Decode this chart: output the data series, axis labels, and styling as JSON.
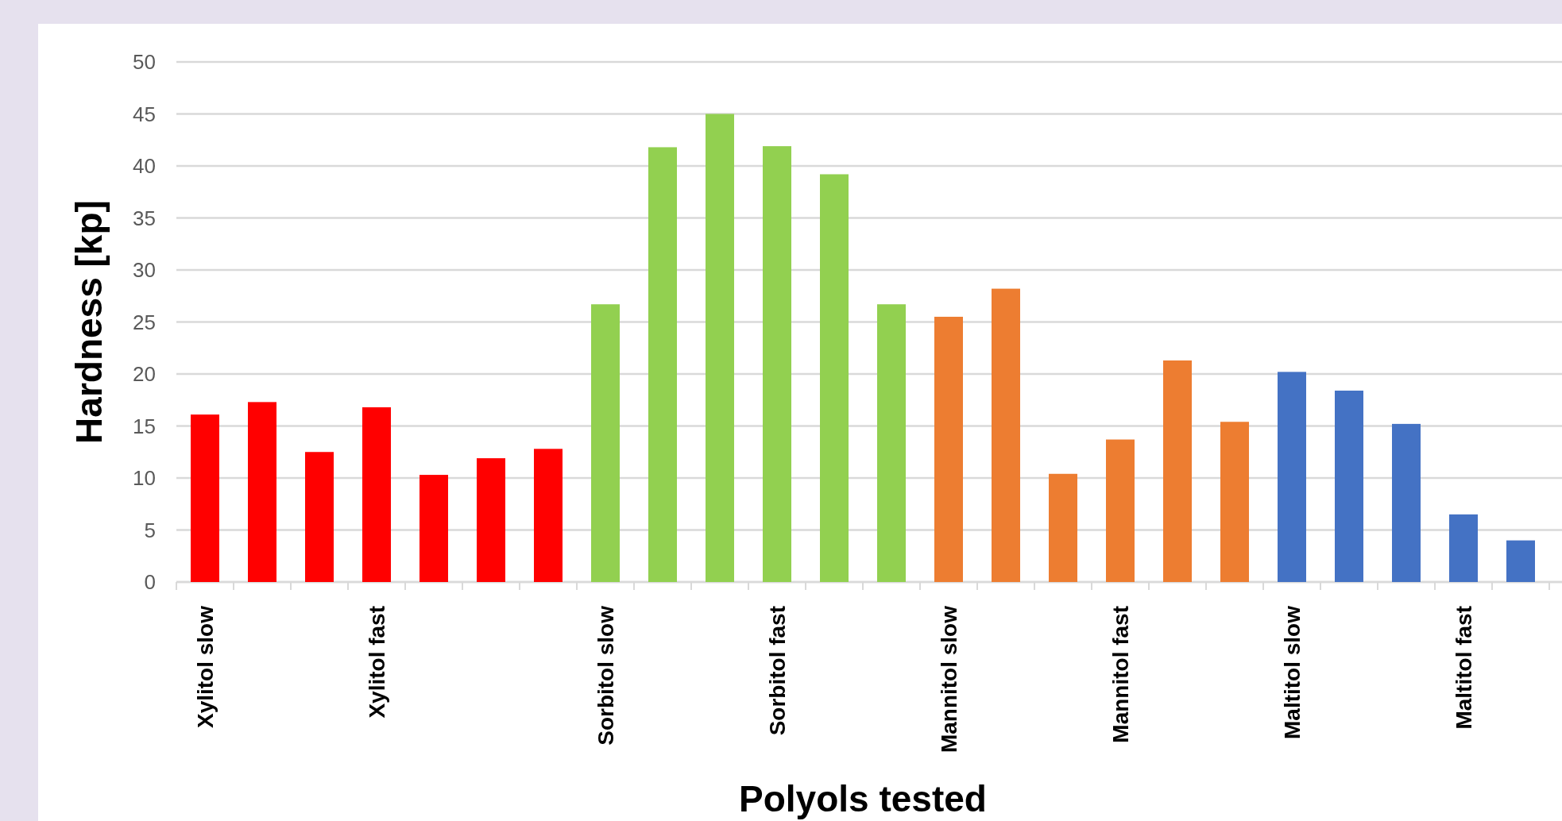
{
  "chart_data": {
    "type": "bar",
    "xlabel": "Polyols tested",
    "ylabel": "Hardness [kp]",
    "categories": [
      "Xylitol slow",
      null,
      null,
      "Xylitol fast",
      null,
      null,
      null,
      "Sorbitol slow",
      null,
      null,
      "Sorbitol fast",
      null,
      null,
      "Mannitol slow",
      null,
      null,
      "Mannitol fast",
      null,
      null,
      "Maltitol slow",
      null,
      null,
      "Maltitol fast",
      null
    ],
    "values": [
      16.1,
      17.3,
      12.5,
      16.8,
      10.3,
      11.9,
      12.8,
      26.7,
      41.8,
      45.0,
      41.9,
      39.2,
      26.7,
      25.5,
      28.2,
      10.4,
      13.7,
      21.3,
      15.4,
      20.2,
      18.4,
      15.2,
      6.5,
      4.0
    ],
    "colors": [
      "#ff0000",
      "#ff0000",
      "#ff0000",
      "#ff0000",
      "#ff0000",
      "#ff0000",
      "#ff0000",
      "#92d050",
      "#92d050",
      "#92d050",
      "#92d050",
      "#92d050",
      "#92d050",
      "#ed7d31",
      "#ed7d31",
      "#ed7d31",
      "#ed7d31",
      "#ed7d31",
      "#ed7d31",
      "#4472c4",
      "#4472c4",
      "#4472c4",
      "#4472c4",
      "#4472c4"
    ],
    "ylim": [
      0,
      50
    ],
    "yticks": [
      0,
      5,
      10,
      15,
      20,
      25,
      30,
      35,
      40,
      45,
      50
    ],
    "grid": "y"
  }
}
